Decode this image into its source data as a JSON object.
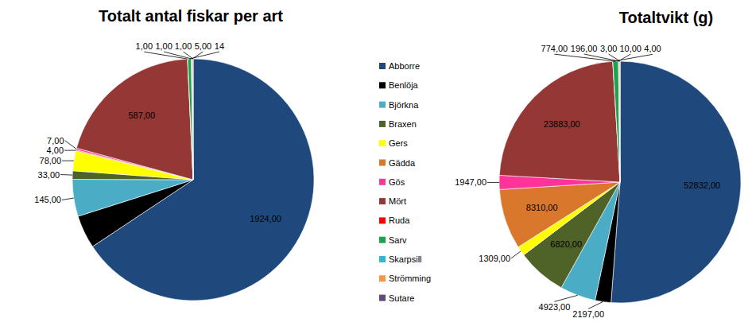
{
  "chart_data": [
    {
      "type": "pie",
      "title": "Totalt antal fiskar per art",
      "categories": [
        "Abborre",
        "Benlöja",
        "Björkna",
        "Braxen",
        "Gers",
        "Gädda",
        "Gös",
        "Mört",
        "Ruda",
        "Sarv",
        "Skarpsill",
        "Strömming",
        "Sutare"
      ],
      "values": [
        1924,
        130,
        145,
        33,
        78,
        4,
        7,
        587,
        1,
        14,
        1,
        5,
        1
      ],
      "value_labels": [
        "1924,00",
        null,
        "145,00",
        "33,00",
        "78,00",
        "4,00",
        "7,00",
        "587,00",
        "1,00",
        "14",
        "1,00",
        "5,00",
        "1,00"
      ],
      "colors": [
        "#1f497d",
        "#000000",
        "#4bacc6",
        "#4f6228",
        "#ffff00",
        "#d9782d",
        "#ff3399",
        "#953735",
        "#ff0000",
        "#1aa251",
        "#31b6d8",
        "#f79646",
        "#604a7b"
      ],
      "data_labels": true,
      "legend": "right"
    },
    {
      "type": "pie",
      "title": "Totaltvikt (g)",
      "categories": [
        "Abborre",
        "Benlöja",
        "Björkna",
        "Braxen",
        "Gers",
        "Gädda",
        "Gös",
        "Mört",
        "Ruda",
        "Sarv",
        "Skarpsill",
        "Strömming",
        "Sutare"
      ],
      "values": [
        52832,
        2197,
        4923,
        6820,
        1309,
        8310,
        1947,
        23883,
        4,
        774,
        10,
        196,
        3
      ],
      "value_labels": [
        "52832,00",
        "2197,00",
        "4923,00",
        "6820,00",
        "1309,00",
        "8310,00",
        "1947,00",
        "23883,00",
        "4,00",
        "774,00",
        "10,00",
        "196,00",
        "3,00"
      ],
      "colors": [
        "#1f497d",
        "#000000",
        "#4bacc6",
        "#4f6228",
        "#ffff00",
        "#d9782d",
        "#ff3399",
        "#953735",
        "#ff0000",
        "#1aa251",
        "#31b6d8",
        "#f79646",
        "#604a7b"
      ],
      "data_labels": true
    }
  ]
}
